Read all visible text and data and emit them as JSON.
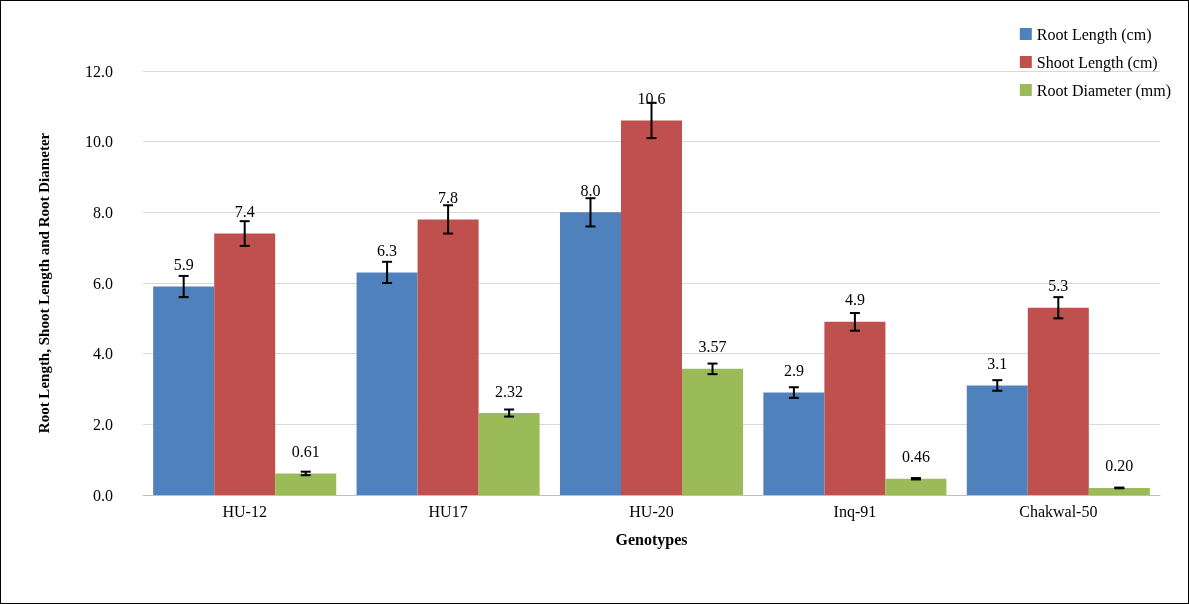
{
  "chart_data": {
    "type": "bar",
    "xlabel": "Genotypes",
    "ylabel": "Root Length, Shoot Length and Root Diameter",
    "categories": [
      "HU-12",
      "HU17",
      "HU-20",
      "Inq-91",
      "Chakwal-50"
    ],
    "series": [
      {
        "name": "Root Length (cm)",
        "color": "#4f81bd",
        "values": [
          5.9,
          6.3,
          8.0,
          2.9,
          3.1
        ],
        "value_labels": [
          "5.9",
          "6.3",
          "8.0",
          "2.9",
          "3.1"
        ],
        "errors": [
          0.3,
          0.3,
          0.4,
          0.15,
          0.15
        ]
      },
      {
        "name": "Shoot Length (cm)",
        "color": "#c0504d",
        "values": [
          7.4,
          7.8,
          10.6,
          4.9,
          5.3
        ],
        "value_labels": [
          "7.4",
          "7.8",
          "10.6",
          "4.9",
          "5.3"
        ],
        "errors": [
          0.35,
          0.4,
          0.5,
          0.25,
          0.3
        ]
      },
      {
        "name": "Root Diameter (mm)",
        "color": "#9bbb59",
        "values": [
          0.61,
          2.32,
          3.57,
          0.46,
          0.2
        ],
        "value_labels": [
          "0.61",
          "2.32",
          "3.57",
          "0.46",
          "0.20"
        ],
        "errors": [
          0.05,
          0.1,
          0.15,
          0.02,
          0.01
        ]
      }
    ],
    "ylim": [
      0,
      12
    ],
    "yticks": [
      {
        "value": 0,
        "label": "0.0"
      },
      {
        "value": 2,
        "label": "2.0"
      },
      {
        "value": 4,
        "label": "4.0"
      },
      {
        "value": 6,
        "label": "6.0"
      },
      {
        "value": 8,
        "label": "8.0"
      },
      {
        "value": 10,
        "label": "10.0"
      },
      {
        "value": 12,
        "label": "12.0"
      }
    ],
    "grid": "y",
    "legend": "top right"
  }
}
